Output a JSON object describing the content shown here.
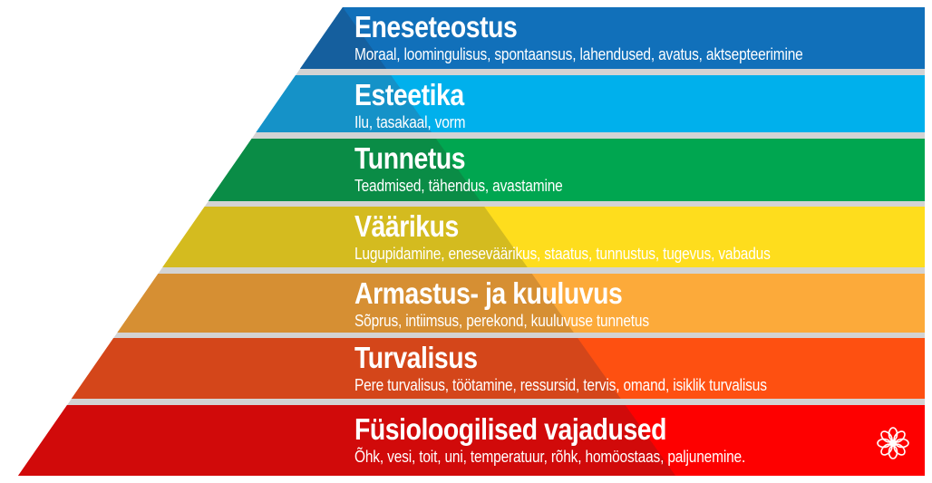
{
  "levels": [
    {
      "title": "Eneseteostus",
      "subtitle": "Moraal, loomingulisus, spontaansus, lahendused, avatus, aktsepteerimine",
      "color": "#1170ba",
      "shade": "#155f9e"
    },
    {
      "title": "Esteetika",
      "subtitle": "Ilu, tasakaal, vorm",
      "color": "#00b0ec",
      "shade": "#1592c8"
    },
    {
      "title": "Tunnetus",
      "subtitle": "Teadmised, tähendus, avastamine",
      "color": "#00a650",
      "shade": "#0a8c46"
    },
    {
      "title": "Väärikus",
      "subtitle": "Lugupidamine, eneseväärikus, staatus, tunnustus, tugevus, vabadus",
      "color": "#fedd1d",
      "shade": "#d4bb1f"
    },
    {
      "title": "Armastus- ja kuuluvus",
      "subtitle": "Sõprus, intiimsus, perekond, kuuluvuse tunnetus",
      "color": "#fcaa3a",
      "shade": "#d68f33"
    },
    {
      "title": "Turvalisus",
      "subtitle": "Pere turvalisus, töötamine, ressursid, tervis, omand, isiklik turvalisus",
      "color": "#fe5011",
      "shade": "#d4461a"
    },
    {
      "title": "Füsioloogilised vajadused",
      "subtitle": "Õhk, vesi, toit, uni, temperatuur, rõhk, homöostaas, paljunemine.",
      "color": "#fe0000",
      "shade": "#d10a0a"
    }
  ],
  "gap_color": "#d3d3d3",
  "corner_icon": "flower-icon"
}
